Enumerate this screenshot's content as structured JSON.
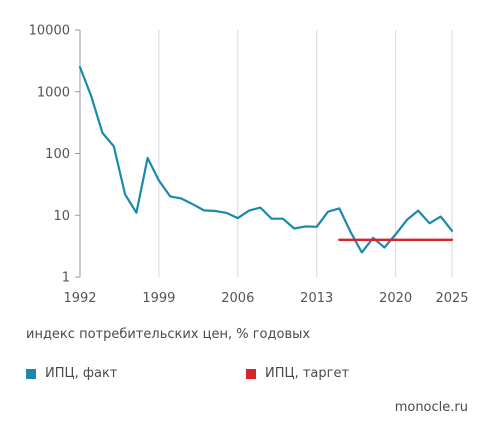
{
  "chart_data": {
    "type": "line",
    "title": "",
    "xlabel": "",
    "ylabel": "",
    "yscale": "log",
    "ylim": [
      1,
      10000
    ],
    "xlim": [
      1992,
      2025
    ],
    "x_ticks": [
      1992,
      1999,
      2006,
      2013,
      2020,
      2025
    ],
    "y_ticks": [
      1,
      10,
      100,
      1000,
      10000
    ],
    "y_tick_labels": [
      "1",
      "10",
      "100",
      "1000",
      "10000"
    ],
    "grid": "vertical",
    "caption": "индекс потребительских цен, % годовых",
    "legend_position": "bottom",
    "series": [
      {
        "name": "ИПЦ, факт",
        "color": "#1b8aaa",
        "x": [
          1992,
          1993,
          1994,
          1995,
          1996,
          1997,
          1998,
          1999,
          2000,
          2001,
          2002,
          2003,
          2004,
          2005,
          2006,
          2007,
          2008,
          2009,
          2010,
          2011,
          2012,
          2013,
          2014,
          2015,
          2016,
          2017,
          2018,
          2019,
          2020,
          2021,
          2022,
          2023,
          2024,
          2025
        ],
        "values": [
          2509,
          840,
          215,
          131,
          21.8,
          11.0,
          84.5,
          36.6,
          20.2,
          18.6,
          15.1,
          12.0,
          11.7,
          10.9,
          9.0,
          11.9,
          13.3,
          8.8,
          8.8,
          6.1,
          6.6,
          6.5,
          11.4,
          12.9,
          5.4,
          2.5,
          4.3,
          3.0,
          4.9,
          8.4,
          11.9,
          7.4,
          9.5,
          5.6
        ]
      },
      {
        "name": "ИПЦ, таргет",
        "color": "#d8232a",
        "x": [
          2015,
          2025
        ],
        "values": [
          4,
          4
        ]
      }
    ]
  },
  "brand": "monocle.ru"
}
